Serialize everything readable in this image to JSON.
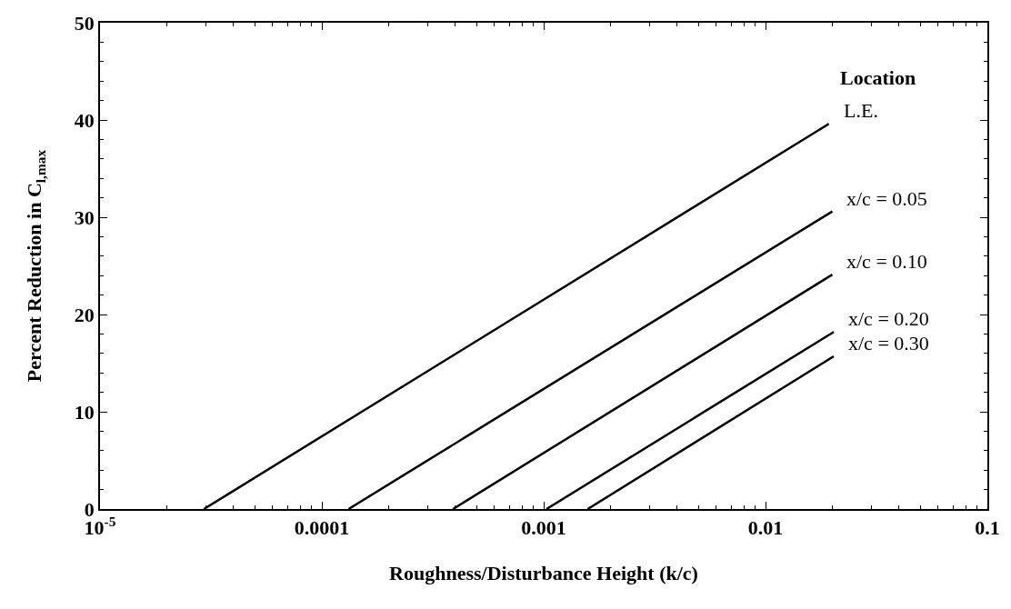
{
  "chart_data": {
    "type": "line",
    "xlabel": "Roughness/Disturbance Height (k/c)",
    "ylabel": "Percent Reduction in C$_{l,max}$",
    "legend_title": "Location",
    "log": "x",
    "legend": false,
    "marker": "none",
    "line_style": "solid",
    "xlim": [
      1e-05,
      0.1
    ],
    "xticks": [
      {
        "value": 1e-05,
        "label": "10$^{-5}$"
      },
      0.0001,
      0.001,
      0.01,
      0.1
    ],
    "ylim": [
      0,
      50
    ],
    "yticks": [
      0,
      10,
      20,
      30,
      40,
      50
    ],
    "series": [
      {
        "name": "L.E.",
        "color": "#000000",
        "x": [
          2.94e-05,
          0.0193
        ],
        "values": [
          0,
          39.6
        ]
      },
      {
        "name": "x/c = 0.05",
        "color": "#000000",
        "x": [
          0.000132,
          0.02
        ],
        "values": [
          0,
          30.6
        ]
      },
      {
        "name": "x/c = 0.10",
        "color": "#000000",
        "x": [
          0.00039,
          0.02
        ],
        "values": [
          0,
          24.1
        ]
      },
      {
        "name": "x/c = 0.20",
        "color": "#000000",
        "x": [
          0.00103,
          0.0203
        ],
        "values": [
          0,
          18.2
        ]
      },
      {
        "name": "x/c = 0.30",
        "color": "#000000",
        "x": [
          0.00158,
          0.0203
        ],
        "values": [
          0,
          15.7
        ]
      }
    ]
  }
}
